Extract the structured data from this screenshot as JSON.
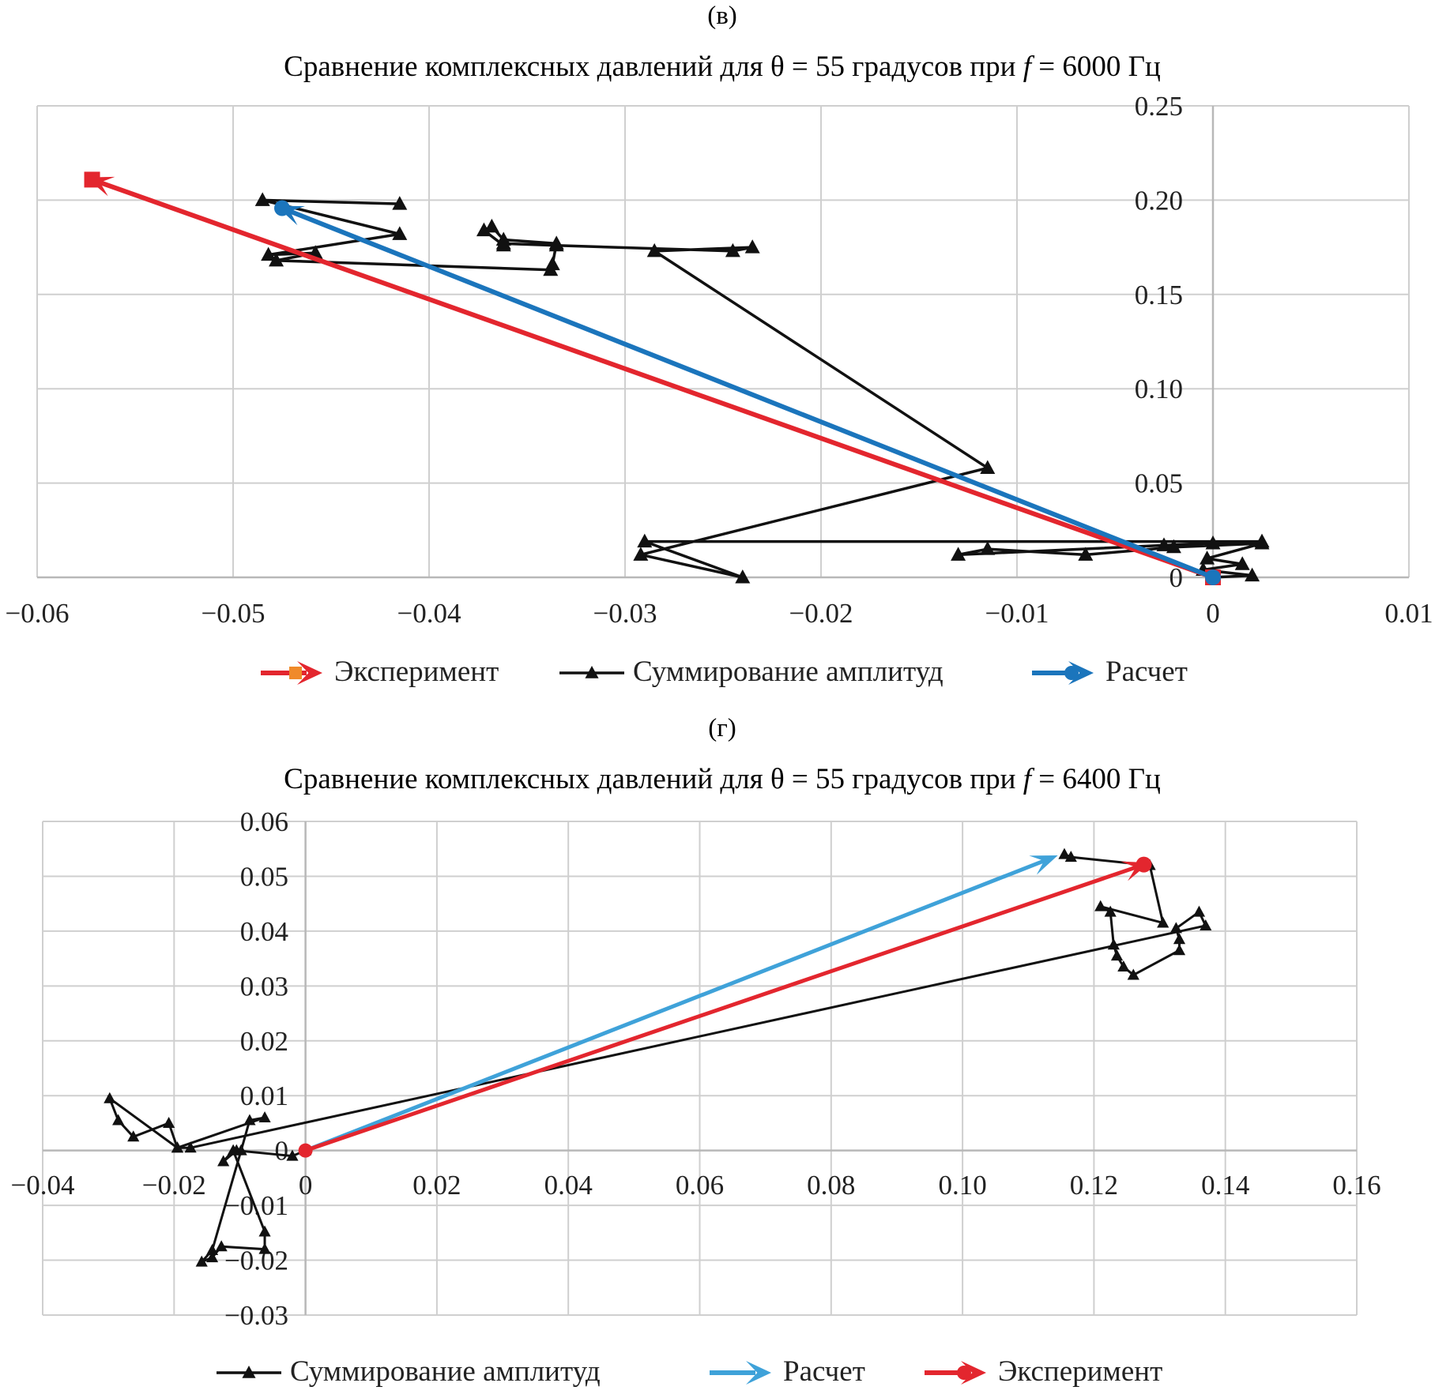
{
  "chart_data": [
    {
      "panel_label": "(в)",
      "type": "line",
      "title": "Сравнение комплексных давлений для θ = 55 градусов при f = 6000 Гц",
      "title_parts": {
        "before_f": "Сравнение комплексных давлений для θ = 55 градусов при ",
        "f_symbol": "f",
        "after_f": " = 6000 Гц"
      },
      "xlim": [
        -0.06,
        0.01
      ],
      "ylim": [
        0,
        0.25
      ],
      "x_ticks": [
        "−0.06",
        "−0.05",
        "−0.04",
        "−0.03",
        "−0.02",
        "−0.01",
        "0",
        "0.01"
      ],
      "x_tick_values": [
        -0.06,
        -0.05,
        -0.04,
        -0.03,
        -0.02,
        -0.01,
        0,
        0.01
      ],
      "y_ticks": [
        "0",
        "0.05",
        "0.10",
        "0.15",
        "0.20",
        "0.25"
      ],
      "y_tick_values": [
        0,
        0.05,
        0.1,
        0.15,
        0.2,
        0.25
      ],
      "grid": true,
      "legend_position": "bottom",
      "series": [
        {
          "name": "Эксперимент",
          "kind": "arrow",
          "color": "#e3262e",
          "marker": "square",
          "points": [
            [
              0,
              0
            ],
            [
              -0.0575,
              0.212
            ]
          ]
        },
        {
          "name": "Суммирование амплитуд",
          "kind": "polyline",
          "color": "#111111",
          "marker": "triangle",
          "points": [
            [
              0,
              0
            ],
            [
              0.002,
              0.001
            ],
            [
              -0.0005,
              0.004
            ],
            [
              0.0015,
              0.007
            ],
            [
              -0.0003,
              0.01
            ],
            [
              0.0025,
              0.018
            ],
            [
              -0.002,
              0.016
            ],
            [
              -0.0065,
              0.012
            ],
            [
              -0.0115,
              0.015
            ],
            [
              -0.013,
              0.012
            ],
            [
              -0.0025,
              0.017
            ],
            [
              0,
              0.018
            ],
            [
              0.0025,
              0.019
            ],
            [
              -0.029,
              0.019
            ],
            [
              -0.024,
              0
            ],
            [
              -0.0292,
              0.012
            ],
            [
              -0.0115,
              0.058
            ],
            [
              -0.0285,
              0.173
            ],
            [
              -0.0235,
              0.175
            ],
            [
              -0.0245,
              0.173
            ],
            [
              -0.0335,
              0.176
            ],
            [
              -0.0362,
              0.177
            ],
            [
              -0.0362,
              0.176
            ],
            [
              -0.0372,
              0.184
            ],
            [
              -0.0368,
              0.186
            ],
            [
              -0.0362,
              0.179
            ],
            [
              -0.0335,
              0.177
            ],
            [
              -0.0337,
              0.166
            ],
            [
              -0.0338,
              0.163
            ],
            [
              -0.0478,
              0.168
            ],
            [
              -0.0458,
              0.172
            ],
            [
              -0.0482,
              0.171
            ],
            [
              -0.0415,
              0.182
            ],
            [
              -0.0485,
              0.2
            ],
            [
              -0.0415,
              0.198
            ]
          ]
        },
        {
          "name": "Расчет",
          "kind": "arrow",
          "color": "#1b75bc",
          "marker": "circle",
          "points": [
            [
              0,
              0
            ],
            [
              -0.0478,
              0.197
            ]
          ]
        }
      ]
    },
    {
      "panel_label": "(г)",
      "type": "line",
      "title": "Сравнение комплексных давлений для θ = 55 градусов при f = 6400 Гц",
      "title_parts": {
        "before_f": "Сравнение комплексных давлений для θ = 55 градусов при ",
        "f_symbol": "f",
        "after_f": " = 6400 Гц"
      },
      "xlim": [
        -0.04,
        0.16
      ],
      "ylim": [
        -0.03,
        0.06
      ],
      "x_ticks": [
        "−0.04",
        "−0.02",
        "0",
        "0.02",
        "0.04",
        "0.06",
        "0.08",
        "0.10",
        "0.12",
        "0.14",
        "0.16"
      ],
      "x_tick_values": [
        -0.04,
        -0.02,
        0,
        0.02,
        0.04,
        0.06,
        0.08,
        0.1,
        0.12,
        0.14,
        0.16
      ],
      "y_ticks": [
        "−0.03",
        "−0.02",
        "−0.01",
        "0",
        "0.01",
        "0.02",
        "0.03",
        "0.04",
        "0.05",
        "0.06"
      ],
      "y_tick_values": [
        -0.03,
        -0.02,
        -0.01,
        0,
        0.01,
        0.02,
        0.03,
        0.04,
        0.05,
        0.06
      ],
      "grid": true,
      "legend_position": "bottom",
      "series": [
        {
          "name": "Суммирование амплитуд",
          "kind": "polyline",
          "color": "#111111",
          "marker": "triangle",
          "points": [
            [
              0,
              0
            ],
            [
              -0.002,
              -0.001
            ],
            [
              -0.0105,
              0
            ],
            [
              -0.0125,
              -0.002
            ],
            [
              -0.011,
              0
            ],
            [
              -0.0062,
              -0.0148
            ],
            [
              -0.0062,
              -0.018
            ],
            [
              -0.0128,
              -0.0175
            ],
            [
              -0.0142,
              -0.0195
            ],
            [
              -0.0158,
              -0.0203
            ],
            [
              -0.0142,
              -0.0182
            ],
            [
              -0.0098,
              0
            ],
            [
              -0.0085,
              0.0055
            ],
            [
              -0.0062,
              0.006
            ],
            [
              -0.0195,
              0.0005
            ],
            [
              -0.0208,
              0.005
            ],
            [
              -0.0262,
              0.0025
            ],
            [
              -0.0285,
              0.0055
            ],
            [
              -0.0298,
              0.0095
            ],
            [
              -0.0195,
              0.0005
            ],
            [
              -0.0175,
              0.0005
            ],
            [
              0.137,
              0.041
            ],
            [
              0.136,
              0.0435
            ],
            [
              0.1325,
              0.0405
            ],
            [
              0.133,
              0.0385
            ],
            [
              0.133,
              0.0365
            ],
            [
              0.126,
              0.032
            ],
            [
              0.1245,
              0.0335
            ],
            [
              0.1235,
              0.0355
            ],
            [
              0.123,
              0.0375
            ],
            [
              0.1225,
              0.0435
            ],
            [
              0.121,
              0.0445
            ],
            [
              0.1305,
              0.0415
            ],
            [
              0.1285,
              0.052
            ],
            [
              0.1165,
              0.0535
            ],
            [
              0.1155,
              0.054
            ]
          ]
        },
        {
          "name": "Расчет",
          "kind": "arrow",
          "color": "#3fa2d9",
          "marker": "none",
          "points": [
            [
              0,
              0
            ],
            [
              0.1145,
              0.0538
            ]
          ]
        },
        {
          "name": "Эксперимент",
          "kind": "arrow",
          "color": "#e3262e",
          "marker": "circle",
          "points": [
            [
              0,
              0
            ],
            [
              0.1285,
              0.0525
            ]
          ]
        }
      ]
    }
  ]
}
